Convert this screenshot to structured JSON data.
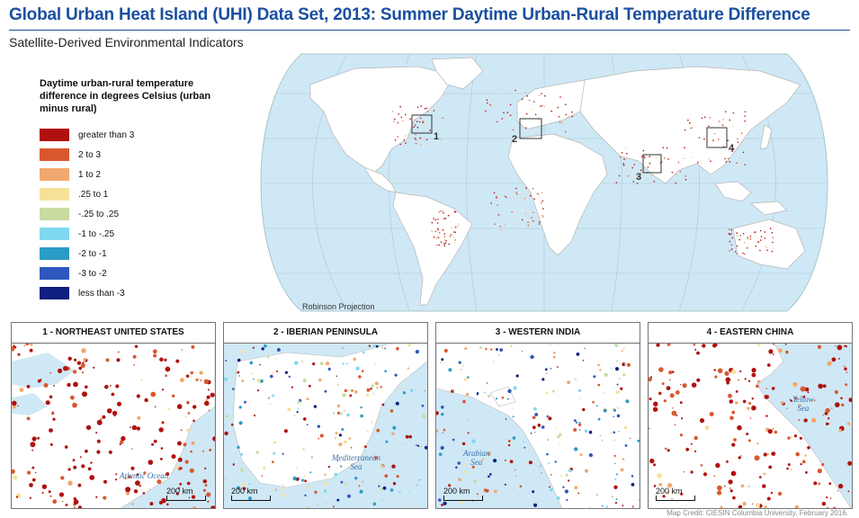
{
  "title": "Global Urban Heat Island (UHI) Data Set, 2013: Summer Daytime Urban-Rural Temperature Difference",
  "subtitle": "Satellite-Derived Environmental Indicators",
  "legend": {
    "title": "Daytime urban-rural temperature difference in degrees Celsius (urban minus rural)",
    "items": [
      {
        "label": "greater than 3",
        "color": "#b0110f"
      },
      {
        "label": "2 to 3",
        "color": "#d9582e"
      },
      {
        "label": "1 to 2",
        "color": "#f2a86e"
      },
      {
        "label": ".25 to 1",
        "color": "#f6e199"
      },
      {
        "label": "-.25 to .25",
        "color": "#c8dba1"
      },
      {
        "label": "-1 to -.25",
        "color": "#7fd9f0"
      },
      {
        "label": "-2 to -1",
        "color": "#2b9cc4"
      },
      {
        "label": "-3 to -2",
        "color": "#2e58bf"
      },
      {
        "label": "less than -3",
        "color": "#0e1f80"
      }
    ]
  },
  "map": {
    "projection_label": "Robinson Projection",
    "inset_markers": [
      "1",
      "2",
      "3",
      "4"
    ]
  },
  "insets": [
    {
      "number": "1",
      "title": "1  -  NORTHEAST UNITED STATES",
      "scale": "200 km",
      "water_labels": [
        "Atlantic Ocean"
      ]
    },
    {
      "number": "2",
      "title": "2  -  IBERIAN PENINSULA",
      "scale": "200 km",
      "water_labels": [
        "Mediterranean",
        "Sea"
      ]
    },
    {
      "number": "3",
      "title": "3  -  WESTERN INDIA",
      "scale": "200 km",
      "water_labels": [
        "Arabian",
        "Sea"
      ]
    },
    {
      "number": "4",
      "title": "4  -  EASTERN CHINA",
      "scale": "200 km",
      "water_labels": [
        "Yellow",
        "Sea"
      ]
    }
  ],
  "credit": "Map Credit: CIESIN Columbia University, February 2016.",
  "colors": {
    "title": "#1a4fa0",
    "ocean": "#cfe8f6",
    "land": "#ffffff"
  }
}
